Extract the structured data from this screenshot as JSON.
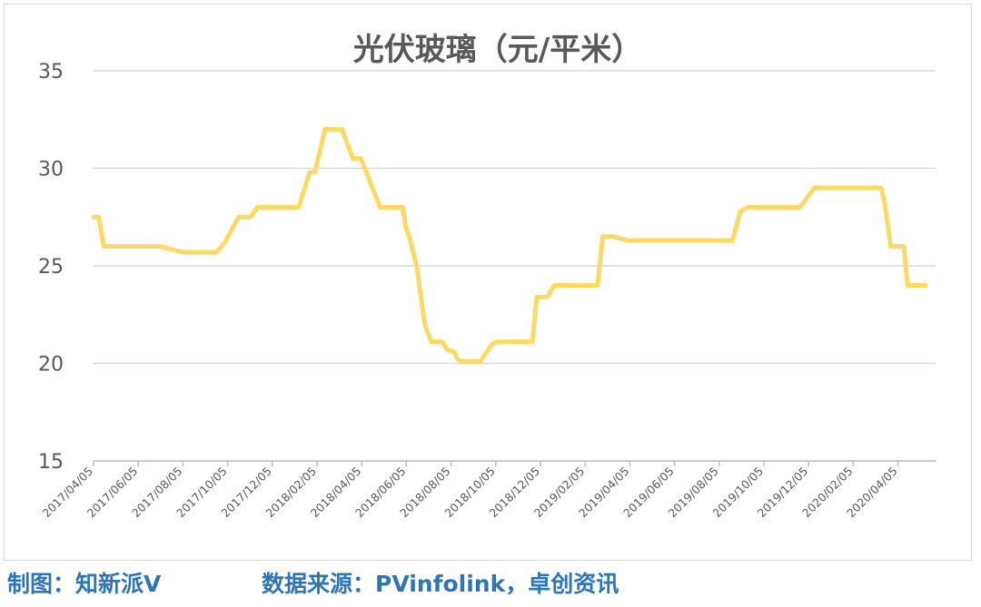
{
  "chart_data": {
    "type": "line",
    "title": "光伏玻璃（元/平米）",
    "xlabel": "",
    "ylabel": "",
    "ylim": [
      15,
      35
    ],
    "yticks": [
      15,
      20,
      25,
      30,
      35
    ],
    "x_tick_labels": [
      "2017/04/05",
      "2017/06/05",
      "2017/08/05",
      "2017/10/05",
      "2017/12/05",
      "2018/02/05",
      "2018/04/05",
      "2018/06/05",
      "2018/08/05",
      "2018/10/05",
      "2018/12/05",
      "2019/02/05",
      "2019/04/05",
      "2019/06/05",
      "2019/08/05",
      "2019/10/05",
      "2019/12/05",
      "2020/02/05",
      "2020/04/05"
    ],
    "grid": true,
    "line_color": "#ffd966",
    "series": [
      {
        "x": [
          "2017/04/05",
          "2017/04/12",
          "2017/04/19",
          "2017/05/05",
          "2017/06/05",
          "2017/07/05",
          "2017/07/25",
          "2017/08/05",
          "2017/09/05",
          "2017/09/20",
          "2017/10/01",
          "2017/10/20",
          "2017/11/05",
          "2017/11/15",
          "2017/12/05",
          "2018/01/05",
          "2018/01/10",
          "2018/01/25",
          "2018/02/01",
          "2018/02/15",
          "2018/03/01",
          "2018/03/10",
          "2018/03/25",
          "2018/04/01",
          "2018/04/05",
          "2018/05/01",
          "2018/05/15",
          "2018/06/01",
          "2018/06/05",
          "2018/06/10",
          "2018/06/20",
          "2018/07/01",
          "2018/07/10",
          "2018/07/25",
          "2018/08/01",
          "2018/08/10",
          "2018/08/15",
          "2018/08/20",
          "2018/09/01",
          "2018/09/15",
          "2018/10/01",
          "2018/10/08",
          "2018/10/20",
          "2018/11/01",
          "2018/11/25",
          "2018/12/01",
          "2018/12/15",
          "2018/12/25",
          "2019/01/01",
          "2019/02/15",
          "2019/02/22",
          "2019/03/01",
          "2019/03/15",
          "2019/04/05",
          "2019/05/05",
          "2019/07/01",
          "2019/08/20",
          "2019/08/25",
          "2019/09/05",
          "2019/09/15",
          "2019/10/05",
          "2019/11/15",
          "2019/11/25",
          "2019/12/15",
          "2020/01/15",
          "2020/03/10",
          "2020/03/15",
          "2020/03/20",
          "2020/03/28",
          "2020/04/05",
          "2020/04/15",
          "2020/04/20",
          "2020/04/30",
          "2020/05/15"
        ],
        "values": [
          27.5,
          27.5,
          26,
          26,
          26,
          26,
          25.8,
          25.7,
          25.7,
          25.7,
          26.2,
          27.5,
          27.5,
          28,
          28,
          28,
          28,
          29.8,
          29.8,
          32,
          32,
          32,
          30.5,
          30.5,
          30.5,
          28,
          28,
          28,
          27,
          26.5,
          25,
          22,
          21.1,
          21.1,
          20.7,
          20.6,
          20.2,
          20.1,
          20.1,
          20.1,
          21,
          21.1,
          21.1,
          21.1,
          21.1,
          23.4,
          23.4,
          24,
          24,
          24,
          24,
          26.5,
          26.5,
          26.3,
          26.3,
          26.3,
          26.3,
          26.3,
          27.8,
          28,
          28,
          28,
          28,
          29,
          29,
          29,
          29,
          28.2,
          26,
          26,
          26,
          24,
          24,
          24
        ]
      }
    ]
  },
  "footer": {
    "credit": "制图：知新派V",
    "source": "数据来源：PVinfolink，卓创资讯"
  }
}
